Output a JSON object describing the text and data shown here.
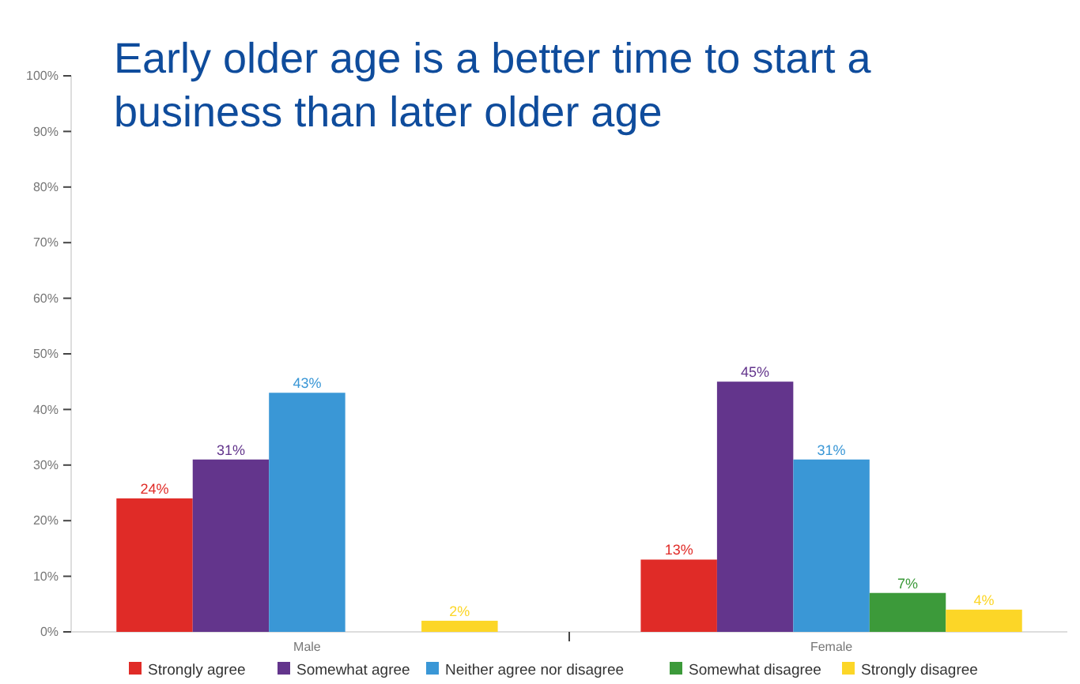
{
  "chart_data": {
    "type": "bar",
    "title": "Early older age is a better time to start a business than later older age",
    "categories": [
      "Male",
      "Female"
    ],
    "series": [
      {
        "name": "Strongly agree",
        "color": "#e02b27",
        "values": [
          24,
          13
        ],
        "value_labels": [
          "24%",
          "13%"
        ]
      },
      {
        "name": "Somewhat agree",
        "color": "#63358c",
        "values": [
          31,
          45
        ],
        "value_labels": [
          "31%",
          "45%"
        ]
      },
      {
        "name": "Neither agree nor disagree",
        "color": "#3a97d6",
        "values": [
          43,
          31
        ],
        "value_labels": [
          "43%",
          "31%"
        ]
      },
      {
        "name": "Somewhat disagree",
        "color": "#3c9a3a",
        "values": [
          null,
          7
        ],
        "value_labels": [
          null,
          "7%"
        ]
      },
      {
        "name": "Strongly disagree",
        "color": "#fcd627",
        "values": [
          2,
          4
        ],
        "value_labels": [
          "2%",
          "4%"
        ]
      }
    ],
    "ylim": [
      0,
      100
    ],
    "yticks": [
      {
        "value": 0,
        "label": "0%"
      },
      {
        "value": 10,
        "label": "10%"
      },
      {
        "value": 20,
        "label": "20%"
      },
      {
        "value": 30,
        "label": "30%"
      },
      {
        "value": 40,
        "label": "40%"
      },
      {
        "value": 50,
        "label": "50%"
      },
      {
        "value": 60,
        "label": "60%"
      },
      {
        "value": 70,
        "label": "70%"
      },
      {
        "value": 80,
        "label": "80%"
      },
      {
        "value": 90,
        "label": "90%"
      },
      {
        "value": 100,
        "label": "100%"
      }
    ],
    "grid": false,
    "legend": "bottom"
  }
}
